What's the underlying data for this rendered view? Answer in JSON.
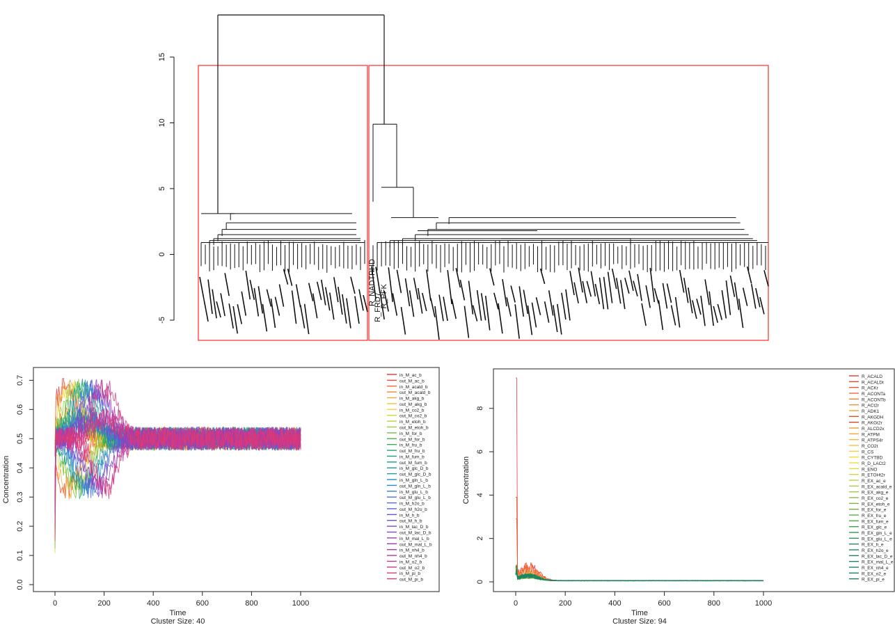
{
  "chart_data": [
    {
      "type": "dendrogram",
      "title": "",
      "ylim": [
        -5,
        18
      ],
      "yticks": [
        -5,
        0,
        5,
        10,
        15
      ],
      "cluster_boxes": [
        {
          "leaf_count": 40
        },
        {
          "leaf_count": 94
        }
      ],
      "root_height": 18.2,
      "left_cluster_height": 3.1,
      "right_cluster_height": 9.9,
      "visible_leaf_labels": [
        "R_NADTRHD",
        "R_FRD7",
        "R_PFK"
      ],
      "leaf_label_color": "#000000",
      "box_color": "#ff2a2a"
    },
    {
      "type": "line",
      "title": "",
      "xlabel": "Time",
      "ylabel": "Concentration",
      "subtitle": "Cluster Size: 40",
      "xlim": [
        0,
        1000
      ],
      "ylim": [
        0,
        0.72
      ],
      "xticks": [
        0,
        200,
        400,
        600,
        800,
        1000
      ],
      "yticks": [
        0.0,
        0.1,
        0.2,
        0.3,
        0.4,
        0.5,
        0.6,
        0.7
      ],
      "legend_position": "right",
      "series": [
        {
          "name": "in_M_ac_b",
          "color": "#e8322f"
        },
        {
          "name": "out_M_ac_b",
          "color": "#ee4a2b"
        },
        {
          "name": "in_M_acald_b",
          "color": "#f26a2a"
        },
        {
          "name": "out_M_acald_b",
          "color": "#f58a2c"
        },
        {
          "name": "in_M_akg_b",
          "color": "#f8a62f"
        },
        {
          "name": "out_M_akg_b",
          "color": "#f9c233"
        },
        {
          "name": "in_M_co2_b",
          "color": "#f2d637"
        },
        {
          "name": "out_M_co2_b",
          "color": "#d9d73a"
        },
        {
          "name": "in_M_etoh_b",
          "color": "#b8d23c"
        },
        {
          "name": "out_M_etoh_b",
          "color": "#96ca3e"
        },
        {
          "name": "in_M_for_b",
          "color": "#72c042"
        },
        {
          "name": "out_M_for_b",
          "color": "#4fb647"
        },
        {
          "name": "in_M_fru_b",
          "color": "#35ad55"
        },
        {
          "name": "out_M_fru_b",
          "color": "#27a566"
        },
        {
          "name": "in_M_fum_b",
          "color": "#1e9f78"
        },
        {
          "name": "out_M_fum_b",
          "color": "#1a9c8b"
        },
        {
          "name": "in_M_glc_D_b",
          "color": "#1a9a9e"
        },
        {
          "name": "out_M_glc_D_b",
          "color": "#1c97b0"
        },
        {
          "name": "in_M_gln_L_b",
          "color": "#2092c2"
        },
        {
          "name": "out_M_gln_L_b",
          "color": "#2a8acf"
        },
        {
          "name": "in_M_glu_L_b",
          "color": "#3680d6"
        },
        {
          "name": "out_M_glu_L_b",
          "color": "#4375da"
        },
        {
          "name": "in_M_h2o_b",
          "color": "#4f69db"
        },
        {
          "name": "out_M_h2o_b",
          "color": "#5a5fda"
        },
        {
          "name": "in_M_h_b",
          "color": "#6556d6"
        },
        {
          "name": "out_M_h_b",
          "color": "#704ed1"
        },
        {
          "name": "in_M_lac_D_b",
          "color": "#7b47cb"
        },
        {
          "name": "out_M_lac_D_b",
          "color": "#8742c4"
        },
        {
          "name": "in_M_mal_L_b",
          "color": "#933ebd"
        },
        {
          "name": "out_M_mal_L_b",
          "color": "#9f3bb4"
        },
        {
          "name": "in_M_nh4_b",
          "color": "#ab39aa"
        },
        {
          "name": "out_M_nh4_b",
          "color": "#b8389f"
        },
        {
          "name": "in_M_o2_b",
          "color": "#c53893"
        },
        {
          "name": "out_M_o2_b",
          "color": "#d13886"
        },
        {
          "name": "in_M_pi_b",
          "color": "#dd3878"
        },
        {
          "name": "out_M_pi_b",
          "color": "#e7386a"
        }
      ]
    },
    {
      "type": "line",
      "title": "",
      "xlabel": "Time",
      "ylabel": "Concentration",
      "subtitle": "Cluster Size: 94",
      "xlim": [
        0,
        1000
      ],
      "ylim": [
        0,
        9.5
      ],
      "xticks": [
        0,
        200,
        400,
        600,
        800,
        1000
      ],
      "yticks": [
        0,
        2,
        4,
        6,
        8
      ],
      "legend_position": "right",
      "series": [
        {
          "name": "R_ACALD",
          "color": "#e8322f"
        },
        {
          "name": "R_ACALDt",
          "color": "#ec452c"
        },
        {
          "name": "R_ACKr",
          "color": "#f0592b"
        },
        {
          "name": "R_ACONTa",
          "color": "#f36c2a"
        },
        {
          "name": "R_ACONTb",
          "color": "#f57e2b"
        },
        {
          "name": "R_ACt2r",
          "color": "#f7902c"
        },
        {
          "name": "R_ADK1",
          "color": "#f8a22e"
        },
        {
          "name": "R_AKGDH",
          "color": "#e0501f"
        },
        {
          "name": "R_AKGt2r",
          "color": "#d84a1a"
        },
        {
          "name": "R_ALCD2x",
          "color": "#f59a2c"
        },
        {
          "name": "R_ATPM",
          "color": "#f7a830"
        },
        {
          "name": "R_ATPS4r",
          "color": "#f8b632"
        },
        {
          "name": "R_CO2t",
          "color": "#f9c334"
        },
        {
          "name": "R_CS",
          "color": "#f9cf36"
        },
        {
          "name": "R_CYTBD",
          "color": "#f6d938"
        },
        {
          "name": "R_D_LACt2",
          "color": "#eedd3a"
        },
        {
          "name": "R_ENO",
          "color": "#e2dc3b"
        },
        {
          "name": "R_ETOHt2r",
          "color": "#d3d83c"
        },
        {
          "name": "R_EX_ac_e",
          "color": "#c2d33d"
        },
        {
          "name": "R_EX_acald_e",
          "color": "#b0cd3e"
        },
        {
          "name": "R_EX_akg_e",
          "color": "#9fc73f"
        },
        {
          "name": "R_EX_co2_e",
          "color": "#8ec040"
        },
        {
          "name": "R_EX_etoh_e",
          "color": "#7db942"
        },
        {
          "name": "R_EX_for_e",
          "color": "#6db344"
        },
        {
          "name": "R_EX_fru_e",
          "color": "#5dad46"
        },
        {
          "name": "R_EX_fum_e",
          "color": "#4ea748"
        },
        {
          "name": "R_EX_glc_e",
          "color": "#40a14b"
        },
        {
          "name": "R_EX_gln_L_e",
          "color": "#349b4e"
        },
        {
          "name": "R_EX_glu_L_e",
          "color": "#2b9652"
        },
        {
          "name": "R_EX_h_e",
          "color": "#249156"
        },
        {
          "name": "R_EX_h2o_e",
          "color": "#1f8d5a"
        },
        {
          "name": "R_EX_lac_D_e",
          "color": "#1c8a5e"
        },
        {
          "name": "R_EX_mal_L_e",
          "color": "#1a8762"
        },
        {
          "name": "R_EX_nh4_e",
          "color": "#198566"
        },
        {
          "name": "R_EX_o2_e",
          "color": "#18836a"
        },
        {
          "name": "R_EX_pi_e",
          "color": "#17816e"
        }
      ]
    }
  ]
}
